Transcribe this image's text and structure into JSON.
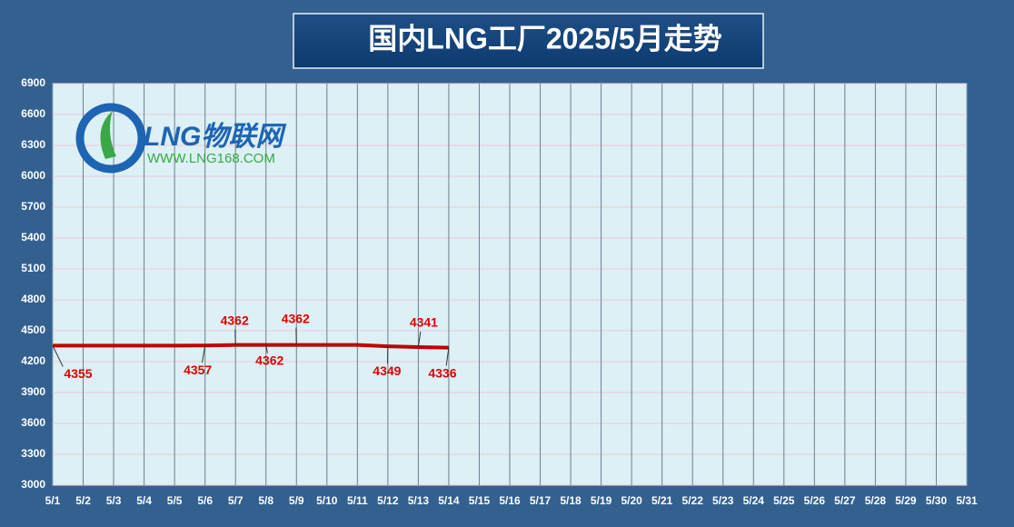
{
  "chart_data": {
    "type": "line",
    "title": "国内LNG工厂2025/5月走势",
    "logo": {
      "name": "LNG物联网",
      "url": "WWW.LNG168.COM"
    },
    "categories": [
      "5/1",
      "5/2",
      "5/3",
      "5/4",
      "5/5",
      "5/6",
      "5/7",
      "5/8",
      "5/9",
      "5/10",
      "5/11",
      "5/12",
      "5/13",
      "5/14",
      "5/15",
      "5/16",
      "5/17",
      "5/18",
      "5/19",
      "5/20",
      "5/21",
      "5/22",
      "5/23",
      "5/24",
      "5/25",
      "5/26",
      "5/27",
      "5/28",
      "5/29",
      "5/30",
      "5/31"
    ],
    "series": [
      {
        "color": "#c00000",
        "values": [
          4355,
          4355,
          4356,
          4356,
          4356,
          4357,
          4362,
          4362,
          4362,
          4362,
          4362,
          4349,
          4341,
          4336,
          null,
          null,
          null,
          null,
          null,
          null,
          null,
          null,
          null,
          null,
          null,
          null,
          null,
          null,
          null,
          null,
          null
        ]
      }
    ],
    "ylim": [
      3000,
      6900
    ],
    "yticks": [
      3000,
      3300,
      3600,
      3900,
      4200,
      4500,
      4800,
      5100,
      5400,
      5700,
      6000,
      6300,
      6600,
      6900
    ],
    "grid": true
  }
}
